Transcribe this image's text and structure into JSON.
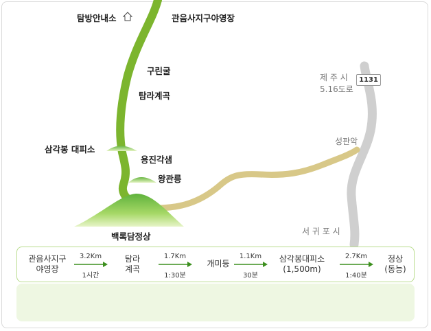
{
  "map": {
    "labels": {
      "info_center": "탐방안내소",
      "gwaneumsa_campground": "관음사지구야영장",
      "gureongul": "구린굴",
      "tamna_valley": "탐라계곡",
      "samgakbong_shelter": "삼각봉 대피소",
      "yongjingaksaem": "용진각샘",
      "wanggwalleung": "왕관릉",
      "baengnokdam_summit": "백록담정상",
      "jeju_city": "제 주 시",
      "road_516": "5.16도로",
      "road_number": "1131",
      "seongpanak": "성판악",
      "seogwipo_city": "서 귀 포 시"
    },
    "colors": {
      "trail_green": "#7cb52e",
      "trail_tan": "#d8c888",
      "road_gray": "#cfcfcf",
      "mountain_green": "#8ccf58",
      "route_border": "#b8dc8c",
      "info_bg": "#eef7e2",
      "arrow_green": "#3c8f1e"
    },
    "icons": {
      "info_center_icon": "house-outline-icon"
    }
  },
  "route": {
    "stops": [
      {
        "line1": "관음사지구",
        "line2": "야영장"
      },
      {
        "line1": "탐라",
        "line2": "계곡"
      },
      {
        "line1": "개미등",
        "line2": ""
      },
      {
        "line1": "삼각봉대피소",
        "line2": "(1,500m)"
      },
      {
        "line1": "정상",
        "line2": "(동능)"
      }
    ],
    "segments": [
      {
        "distance": "3.2Km",
        "time": "1시간"
      },
      {
        "distance": "1.7Km",
        "time": "1:30분"
      },
      {
        "distance": "1.1Km",
        "time": "30분"
      },
      {
        "distance": "2.7Km",
        "time": "1:40분"
      }
    ]
  }
}
